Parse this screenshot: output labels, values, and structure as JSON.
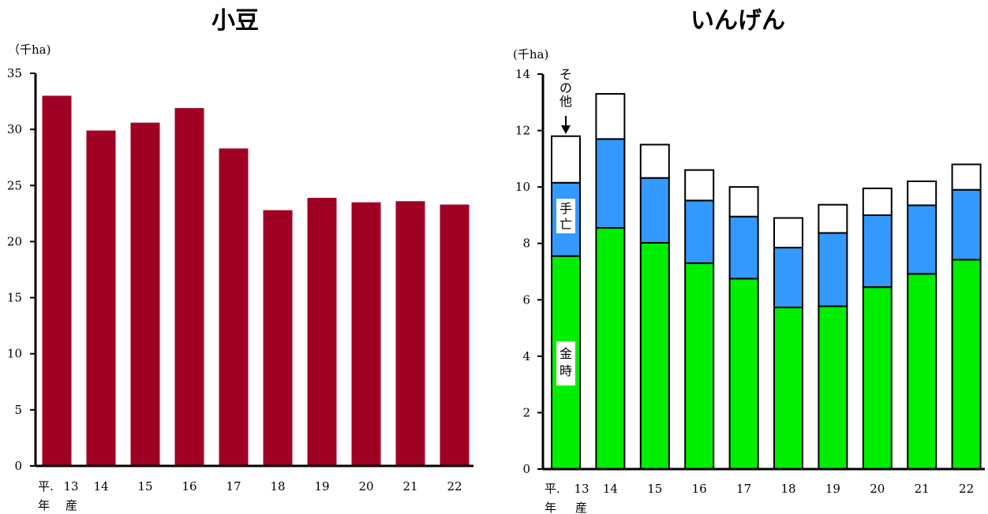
{
  "chart_data": [
    {
      "type": "bar",
      "title": "小豆",
      "unit_label": "（千ha)",
      "ylim": [
        0,
        35
      ],
      "yticks": [
        0,
        5,
        10,
        15,
        20,
        25,
        30,
        35
      ],
      "categories": [
        "13",
        "14",
        "15",
        "16",
        "17",
        "18",
        "19",
        "20",
        "21",
        "22"
      ],
      "x_prefix": [
        "平.",
        "年",
        "産"
      ],
      "values": [
        33.0,
        29.9,
        30.6,
        31.9,
        28.3,
        22.8,
        23.9,
        23.5,
        23.6,
        23.3
      ],
      "color": "#a10025"
    },
    {
      "type": "bar",
      "stacked": true,
      "title": "いんげん",
      "unit_label": "(千ha)",
      "ylim": [
        0,
        14
      ],
      "yticks": [
        0,
        2,
        4,
        6,
        8,
        10,
        12,
        14
      ],
      "categories": [
        "13",
        "14",
        "15",
        "16",
        "17",
        "18",
        "19",
        "20",
        "21",
        "22"
      ],
      "x_prefix": [
        "平.",
        "年",
        "産"
      ],
      "series": [
        {
          "name": "金時",
          "color": "#00ee00",
          "values": [
            7.55,
            8.55,
            8.02,
            7.3,
            6.75,
            5.73,
            5.77,
            6.45,
            6.92,
            7.42
          ]
        },
        {
          "name": "手亡",
          "color": "#3399ff",
          "values": [
            2.6,
            3.15,
            2.3,
            2.22,
            2.2,
            2.12,
            2.6,
            2.55,
            2.43,
            2.48
          ]
        },
        {
          "name": "その他",
          "color": "#ffffff",
          "values": [
            1.65,
            1.6,
            1.18,
            1.08,
            1.05,
            1.05,
            1.0,
            0.95,
            0.85,
            0.9
          ]
        }
      ],
      "annotations": {
        "other": "その他",
        "tebo": "手亡",
        "kintoki": "金時"
      }
    }
  ]
}
